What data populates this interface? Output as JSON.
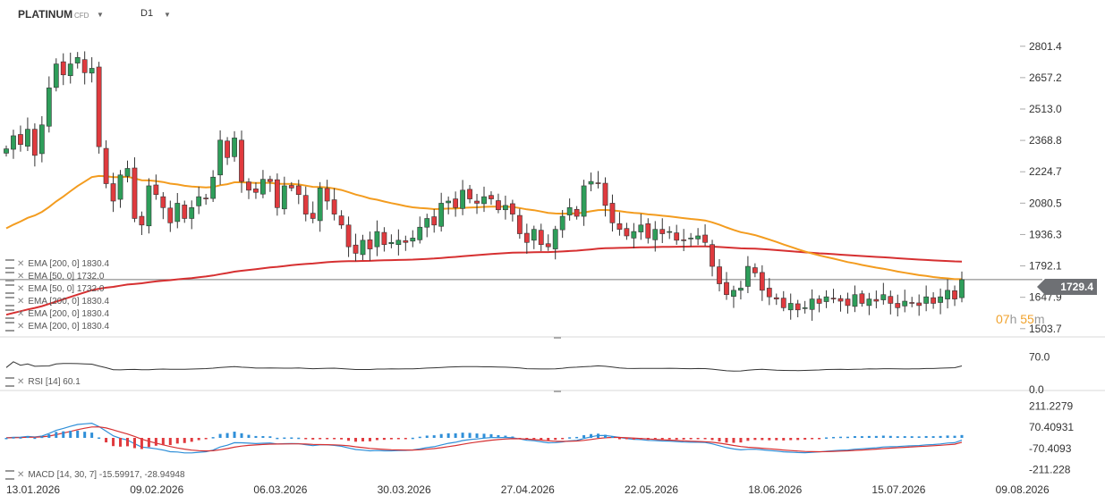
{
  "header": {
    "symbol": "PLATINUM",
    "instrument_type": "CFD",
    "timeframe": "D1",
    "caret": "▼"
  },
  "countdown": {
    "hours": "07",
    "h_unit": "h",
    "minutes": "55",
    "m_unit": "m"
  },
  "last_price": "1729.4",
  "indicator_labels": [
    "EMA [200, 0] 1830.4",
    "EMA [50, 0] 1732.0",
    "EMA [50, 0] 1732.0",
    "EMA [200, 0] 1830.4",
    "EMA [200, 0] 1830.4",
    "EMA [200, 0] 1830.4"
  ],
  "rsi_label": "RSI [14] 60.1",
  "macd_label": "MACD [14, 30, 7] -15.59917, -28.94948",
  "colors": {
    "up": "#2e9e5a",
    "down": "#e03a3e",
    "ema50": "#f39c1f",
    "ema200": "#d63031",
    "macd": "#2f8fd8",
    "signal": "#d63031",
    "rsi": "#333333"
  },
  "chart_data": {
    "type": "candlestick",
    "x_tick_labels": [
      "13.01.2026",
      "09.02.2026",
      "06.03.2026",
      "30.03.2026",
      "27.04.2026",
      "22.05.2026",
      "18.06.2026",
      "15.07.2026",
      "09.08.2026"
    ],
    "price_axis": {
      "ticks": [
        "2801.4",
        "2657.2",
        "2513.0",
        "2368.8",
        "2224.7",
        "2080.5",
        "1936.3",
        "1792.1",
        "1647.9",
        "1503.7"
      ],
      "range": [
        1470,
        2940
      ]
    },
    "closes": [
      2330,
      2390,
      2350,
      2420,
      2300,
      2440,
      2610,
      2720,
      2670,
      2720,
      2750,
      2680,
      2700,
      2340,
      2170,
      2090,
      2210,
      2240,
      2010,
      1980,
      2160,
      2120,
      2060,
      1990,
      2080,
      2010,
      2060,
      2110,
      2100,
      2200,
      2370,
      2290,
      2380,
      2180,
      2140,
      2130,
      2190,
      2180,
      2060,
      2160,
      2150,
      2120,
      2030,
      2010,
      2150,
      2090,
      2030,
      1980,
      1880,
      1850,
      1910,
      1870,
      1950,
      1890,
      1900,
      1910,
      1900,
      1920,
      1970,
      2010,
      1980,
      2080,
      2090,
      2060,
      2140,
      2100,
      2080,
      2110,
      2100,
      2050,
      2070,
      2030,
      1940,
      1900,
      1960,
      1890,
      1880,
      1960,
      2020,
      2060,
      2020,
      2160,
      2180,
      2170,
      2070,
      1990,
      1960,
      1930,
      1950,
      1980,
      1920,
      1960,
      1940,
      1950,
      1910,
      1910,
      1920,
      1930,
      1900,
      1790,
      1710,
      1660,
      1680,
      1690,
      1790,
      1760,
      1680,
      1650,
      1640,
      1600,
      1620,
      1590,
      1600,
      1640,
      1620,
      1650,
      1640,
      1630,
      1610,
      1660,
      1620,
      1640,
      1630,
      1660,
      1620,
      1600,
      1630,
      1620,
      1610,
      1650,
      1620,
      1650,
      1680,
      1640,
      1729
    ],
    "ema_50_last": 1732.0,
    "ema_200_last": 1830.4,
    "rsi": {
      "period": 14,
      "last": 60.1,
      "axis_ticks": [
        "70.0",
        "0.0"
      ],
      "range": [
        0,
        100
      ]
    },
    "macd": {
      "params": [
        14,
        30,
        7
      ],
      "macd_last": -15.59917,
      "signal_last": -28.94948,
      "axis_ticks": [
        "211.2279",
        "70.40931",
        "-70.4093",
        "-211.228"
      ],
      "range": [
        -260,
        260
      ]
    }
  }
}
